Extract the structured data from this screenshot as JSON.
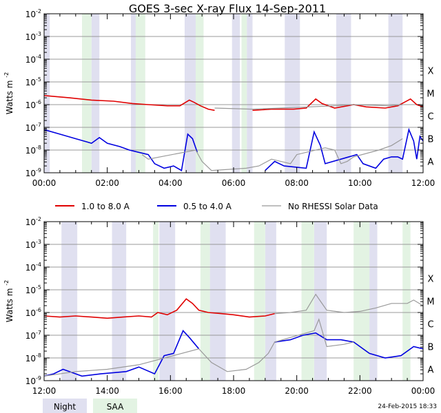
{
  "title": "GOES 3-sec X-ray Flux   14-Sep-2011",
  "ylabel_text": "Watts m",
  "ylabel_sup": "-2",
  "legend": [
    {
      "label": "1.0 to 8.0 A",
      "color": "#e00000"
    },
    {
      "label": "0.5 to 4.0 A",
      "color": "#0000e0"
    },
    {
      "label": "No RHESSI Solar Data",
      "color": "#999999"
    }
  ],
  "bands_legend": [
    {
      "label": "Night",
      "color": "#e0e0f0"
    },
    {
      "label": "SAA",
      "color": "#e3f3e3"
    }
  ],
  "footer": "24-Feb-2015 18:33",
  "chart_data": [
    {
      "type": "line",
      "panel": "top",
      "xlim_hours": [
        0,
        12
      ],
      "ylim_log10": [
        -9,
        -2
      ],
      "xticks": [
        "00:00",
        "02:00",
        "04:00",
        "06:00",
        "08:00",
        "10:00",
        "12:00"
      ],
      "yticks": [
        {
          "base": "10",
          "exp": "-2"
        },
        {
          "base": "10",
          "exp": "-3"
        },
        {
          "base": "10",
          "exp": "-4"
        },
        {
          "base": "10",
          "exp": "-5"
        },
        {
          "base": "10",
          "exp": "-6"
        },
        {
          "base": "10",
          "exp": "-7"
        },
        {
          "base": "10",
          "exp": "-8"
        },
        {
          "base": "10",
          "exp": "-9"
        }
      ],
      "flare_classes": [
        {
          "label": "X",
          "exp": -4
        },
        {
          "label": "M",
          "exp": -5
        },
        {
          "label": "C",
          "exp": -6
        },
        {
          "label": "B",
          "exp": -7
        },
        {
          "label": "A",
          "exp": -8
        }
      ],
      "night": [
        [
          0.0,
          0.18
        ],
        [
          1.5,
          1.75
        ],
        [
          2.75,
          3.2
        ],
        [
          4.45,
          4.8
        ],
        [
          5.95,
          6.2
        ],
        [
          6.42,
          6.6
        ],
        [
          7.62,
          8.1
        ],
        [
          9.25,
          9.72
        ],
        [
          10.9,
          11.35
        ]
      ],
      "saa": [
        [
          1.2,
          1.5
        ],
        [
          2.9,
          3.2
        ],
        [
          4.8,
          5.05
        ],
        [
          6.25,
          6.42
        ]
      ],
      "series": [
        {
          "name": "1.0 to 8.0 A",
          "color": "#e00000",
          "points": [
            [
              0.0,
              -5.6
            ],
            [
              0.8,
              -5.7
            ],
            [
              1.5,
              -5.8
            ],
            [
              2.2,
              -5.85
            ],
            [
              2.8,
              -5.95
            ],
            [
              3.3,
              -6.0
            ],
            [
              3.9,
              -6.05
            ],
            [
              4.3,
              -6.05
            ],
            [
              4.6,
              -5.8
            ],
            [
              4.75,
              -5.9
            ],
            [
              4.95,
              -6.05
            ],
            [
              5.2,
              -6.2
            ],
            [
              5.4,
              -6.25
            ]
          ]
        },
        {
          "name": "1.0 to 8.0 A (b)",
          "color": "#e00000",
          "points": [
            [
              6.6,
              -6.25
            ],
            [
              7.2,
              -6.2
            ],
            [
              7.9,
              -6.2
            ],
            [
              8.3,
              -6.15
            ],
            [
              8.6,
              -5.75
            ],
            [
              8.8,
              -5.95
            ],
            [
              9.2,
              -6.15
            ],
            [
              9.8,
              -6.0
            ],
            [
              10.2,
              -6.1
            ],
            [
              10.8,
              -6.15
            ],
            [
              11.2,
              -6.05
            ],
            [
              11.6,
              -5.75
            ],
            [
              11.8,
              -6.0
            ],
            [
              12.0,
              -6.1
            ]
          ]
        },
        {
          "name": "0.5 to 4.0 A",
          "color": "#0000e0",
          "points": [
            [
              0.0,
              -7.1
            ],
            [
              0.5,
              -7.3
            ],
            [
              1.0,
              -7.5
            ],
            [
              1.5,
              -7.7
            ],
            [
              1.75,
              -7.45
            ],
            [
              2.0,
              -7.7
            ],
            [
              2.4,
              -7.85
            ],
            [
              2.7,
              -8.0
            ],
            [
              3.0,
              -8.1
            ],
            [
              3.3,
              -8.2
            ],
            [
              3.5,
              -8.6
            ],
            [
              3.8,
              -8.8
            ],
            [
              4.1,
              -8.7
            ],
            [
              4.35,
              -8.9
            ],
            [
              4.55,
              -7.3
            ],
            [
              4.7,
              -7.5
            ],
            [
              4.85,
              -8.1
            ]
          ]
        },
        {
          "name": "0.5 to 4.0 A (b)",
          "color": "#0000e0",
          "points": [
            [
              7.0,
              -8.9
            ],
            [
              7.3,
              -8.5
            ],
            [
              7.6,
              -8.7
            ],
            [
              8.3,
              -8.8
            ],
            [
              8.55,
              -7.2
            ],
            [
              8.75,
              -7.8
            ],
            [
              8.9,
              -8.6
            ],
            [
              9.9,
              -8.2
            ],
            [
              10.1,
              -8.6
            ],
            [
              10.5,
              -8.8
            ],
            [
              10.75,
              -8.4
            ],
            [
              11.0,
              -8.3
            ],
            [
              11.2,
              -8.3
            ],
            [
              11.35,
              -8.4
            ],
            [
              11.55,
              -7.1
            ],
            [
              11.7,
              -7.6
            ],
            [
              11.8,
              -8.4
            ],
            [
              11.9,
              -7.4
            ],
            [
              12.0,
              -7.6
            ]
          ]
        },
        {
          "name": "No RHESSI Solar Data",
          "color": "#999999",
          "points": [
            [
              3.1,
              -8.2
            ],
            [
              3.3,
              -8.4
            ],
            [
              4.8,
              -8.0
            ],
            [
              5.0,
              -8.5
            ],
            [
              5.3,
              -8.9
            ],
            [
              6.4,
              -8.8
            ],
            [
              6.8,
              -8.7
            ],
            [
              7.2,
              -8.4
            ],
            [
              7.8,
              -8.6
            ],
            [
              8.0,
              -8.2
            ],
            [
              8.9,
              -7.9
            ],
            [
              9.2,
              -8.0
            ],
            [
              9.4,
              -8.6
            ],
            [
              9.6,
              -8.5
            ],
            [
              9.8,
              -8.3
            ],
            [
              10.6,
              -8.0
            ],
            [
              11.0,
              -7.8
            ],
            [
              11.35,
              -7.5
            ]
          ]
        },
        {
          "name": "No RHESSI Solar Data (b)",
          "color": "#999999",
          "points": [
            [
              5.4,
              -6.15
            ],
            [
              6.6,
              -6.2
            ],
            [
              9.25,
              -6.05
            ],
            [
              9.72,
              -6.0
            ],
            [
              10.9,
              -6.05
            ],
            [
              11.35,
              -6.0
            ]
          ]
        }
      ]
    },
    {
      "type": "line",
      "panel": "bottom",
      "xlim_hours": [
        12,
        24
      ],
      "ylim_log10": [
        -9,
        -2
      ],
      "xticks": [
        "12:00",
        "14:00",
        "16:00",
        "18:00",
        "20:00",
        "22:00",
        "00:00"
      ],
      "yticks": [
        {
          "base": "10",
          "exp": "-2"
        },
        {
          "base": "10",
          "exp": "-3"
        },
        {
          "base": "10",
          "exp": "-4"
        },
        {
          "base": "10",
          "exp": "-5"
        },
        {
          "base": "10",
          "exp": "-6"
        },
        {
          "base": "10",
          "exp": "-7"
        },
        {
          "base": "10",
          "exp": "-8"
        },
        {
          "base": "10",
          "exp": "-9"
        }
      ],
      "flare_classes": [
        {
          "label": "X",
          "exp": -4
        },
        {
          "label": "M",
          "exp": -5
        },
        {
          "label": "C",
          "exp": -6
        },
        {
          "label": "B",
          "exp": -7
        },
        {
          "label": "A",
          "exp": -8
        }
      ],
      "night": [
        [
          12.55,
          13.05
        ],
        [
          14.15,
          14.6
        ],
        [
          15.65,
          16.15
        ],
        [
          17.25,
          17.75
        ],
        [
          19.0,
          19.35
        ],
        [
          20.55,
          20.95
        ],
        [
          22.3,
          22.55
        ]
      ],
      "saa": [
        [
          15.45,
          15.62
        ],
        [
          16.95,
          17.25
        ],
        [
          18.65,
          19.0
        ],
        [
          20.15,
          20.55
        ],
        [
          21.8,
          22.3
        ],
        [
          23.35,
          23.6
        ]
      ],
      "series": [
        {
          "name": "1.0 to 8.0 A",
          "color": "#e00000",
          "points": [
            [
              12.0,
              -6.15
            ],
            [
              12.5,
              -6.2
            ],
            [
              13.0,
              -6.15
            ],
            [
              13.5,
              -6.2
            ],
            [
              14.0,
              -6.25
            ],
            [
              14.5,
              -6.2
            ],
            [
              15.0,
              -6.15
            ],
            [
              15.4,
              -6.2
            ],
            [
              15.6,
              -6.0
            ],
            [
              15.9,
              -6.1
            ],
            [
              16.2,
              -5.9
            ],
            [
              16.5,
              -5.4
            ],
            [
              16.7,
              -5.6
            ],
            [
              16.9,
              -5.9
            ],
            [
              17.2,
              -6.0
            ],
            [
              17.6,
              -6.05
            ],
            [
              18.0,
              -6.1
            ],
            [
              18.5,
              -6.2
            ],
            [
              19.0,
              -6.15
            ],
            [
              19.3,
              -6.05
            ]
          ]
        },
        {
          "name": "No RHESSI Solar Data",
          "color": "#999999",
          "points": [
            [
              19.3,
              -6.05
            ],
            [
              19.8,
              -6.0
            ],
            [
              20.3,
              -5.9
            ],
            [
              20.6,
              -5.2
            ],
            [
              20.75,
              -5.5
            ],
            [
              20.95,
              -5.9
            ],
            [
              21.5,
              -6.0
            ],
            [
              22.0,
              -5.95
            ],
            [
              22.5,
              -5.8
            ],
            [
              23.0,
              -5.6
            ],
            [
              23.5,
              -5.6
            ],
            [
              23.7,
              -5.45
            ],
            [
              24.0,
              -5.7
            ]
          ]
        },
        {
          "name": "0.5 to 4.0 A",
          "color": "#0000e0",
          "points": [
            [
              12.0,
              -8.8
            ],
            [
              12.3,
              -8.7
            ],
            [
              12.6,
              -8.5
            ],
            [
              13.2,
              -8.8
            ],
            [
              13.8,
              -8.7
            ],
            [
              14.6,
              -8.6
            ],
            [
              15.0,
              -8.4
            ],
            [
              15.5,
              -8.7
            ],
            [
              15.8,
              -7.9
            ],
            [
              16.1,
              -7.8
            ],
            [
              16.4,
              -6.8
            ],
            [
              16.6,
              -7.1
            ],
            [
              16.9,
              -7.6
            ]
          ]
        },
        {
          "name": "0.5 to 4.0 A (b)",
          "color": "#0000e0",
          "points": [
            [
              19.3,
              -7.3
            ],
            [
              19.8,
              -7.2
            ],
            [
              20.2,
              -7.0
            ],
            [
              20.6,
              -6.9
            ],
            [
              20.95,
              -7.2
            ],
            [
              21.4,
              -7.2
            ],
            [
              21.8,
              -7.3
            ],
            [
              22.3,
              -7.8
            ],
            [
              22.8,
              -8.0
            ],
            [
              23.3,
              -7.9
            ],
            [
              23.7,
              -7.5
            ],
            [
              24.0,
              -7.6
            ]
          ]
        },
        {
          "name": "No RHESSI Solar Data (b)",
          "color": "#999999",
          "points": [
            [
              12.0,
              -8.8
            ],
            [
              13.0,
              -8.6
            ],
            [
              14.0,
              -8.5
            ],
            [
              15.0,
              -8.3
            ],
            [
              16.9,
              -7.6
            ],
            [
              17.3,
              -8.2
            ],
            [
              17.8,
              -8.6
            ],
            [
              18.4,
              -8.5
            ],
            [
              18.8,
              -8.2
            ],
            [
              19.1,
              -7.8
            ],
            [
              19.3,
              -7.3
            ],
            [
              20.55,
              -6.8
            ],
            [
              20.7,
              -6.3
            ],
            [
              20.95,
              -7.5
            ],
            [
              21.5,
              -7.4
            ],
            [
              21.8,
              -7.3
            ]
          ]
        }
      ]
    }
  ]
}
